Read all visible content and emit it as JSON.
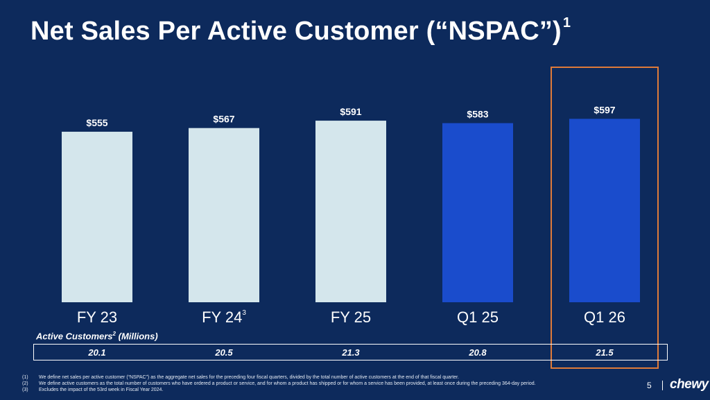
{
  "slide": {
    "title": "Net Sales Per Active Customer (“NSPAC”)",
    "title_sup": "1",
    "page_number": "5",
    "logo_text": "chewy"
  },
  "chart_data": {
    "type": "bar",
    "title": "Net Sales Per Active Customer (“NSPAC”)",
    "categories": [
      "FY 23",
      "FY 24",
      "FY 25",
      "Q1 25",
      "Q1 26"
    ],
    "category_superscripts": [
      "",
      "3",
      "",
      "",
      ""
    ],
    "values": [
      555,
      567,
      591,
      583,
      597
    ],
    "value_labels": [
      "$555",
      "$567",
      "$591",
      "$583",
      "$597"
    ],
    "bar_colors": [
      "#d4e6ec",
      "#d4e6ec",
      "#d4e6ec",
      "#1a4ccc",
      "#1a4ccc"
    ],
    "highlighted_category": "Q1 26",
    "highlight_color": "#e07b39",
    "background_color": "#0d2a5c"
  },
  "active_customers": {
    "title": "Active Customers",
    "title_sup": "2",
    "title_suffix": "(Millions)",
    "values": [
      "20.1",
      "20.5",
      "21.3",
      "20.8",
      "21.5"
    ]
  },
  "footnotes": [
    {
      "num": "(1)",
      "text": "We define net sales per active customer (“NSPAC”) as the aggregate net sales for the preceding four fiscal quarters, divided by the total number of active customers at the end of that fiscal quarter."
    },
    {
      "num": "(2)",
      "text": "We define active customers as the total number of customers who have ordered a product or service, and for whom a product has shipped or for whom a service has been provided, at least once during the preceding 364-day period."
    },
    {
      "num": "(3)",
      "text": "Excludes the impact of the 53rd week in Fiscal Year 2024."
    }
  ]
}
